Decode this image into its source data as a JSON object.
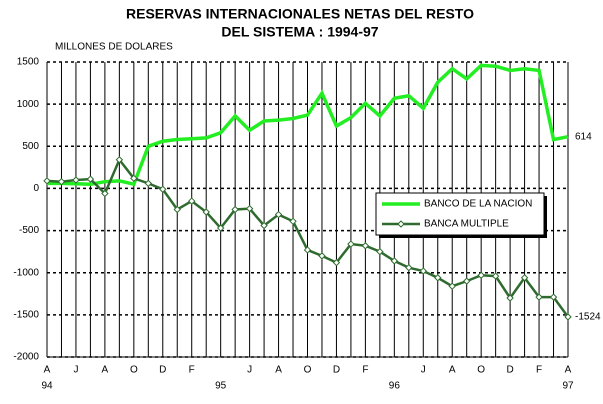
{
  "chart_data": {
    "type": "line",
    "title": "RESERVAS INTERNACIONALES NETAS DEL RESTO",
    "subtitle": "DEL SISTEMA : 1994-97",
    "y_label": "MILLONES DE DOLARES",
    "categories": [
      "A",
      null,
      "J",
      null,
      "A",
      null,
      "O",
      null,
      "D",
      null,
      "F",
      null,
      null,
      null,
      "J",
      null,
      "A",
      null,
      "O",
      null,
      "D",
      null,
      "F",
      null,
      null,
      null,
      "J",
      null,
      "A",
      null,
      "O",
      null,
      "D",
      null,
      "F",
      null,
      "A"
    ],
    "year_labels": [
      "94",
      null,
      null,
      null,
      null,
      null,
      null,
      null,
      null,
      null,
      null,
      null,
      "95",
      null,
      null,
      null,
      null,
      null,
      null,
      null,
      null,
      null,
      null,
      null,
      "96",
      null,
      null,
      null,
      null,
      null,
      null,
      null,
      null,
      null,
      null,
      null,
      "97"
    ],
    "series": [
      {
        "name": "BANCO DE LA NACION",
        "color": "#22ee22",
        "width": 3.5,
        "marker": "none",
        "values": [
          60,
          60,
          55,
          50,
          80,
          90,
          50,
          500,
          560,
          580,
          590,
          600,
          660,
          860,
          690,
          800,
          810,
          830,
          870,
          1130,
          740,
          840,
          1010,
          860,
          1070,
          1100,
          950,
          1260,
          1420,
          1300,
          1460,
          1450,
          1400,
          1420,
          1400,
          580,
          614
        ]
      },
      {
        "name": "BANCA MULTIPLE",
        "color": "#2f6b2f",
        "width": 2.5,
        "marker": "diamond",
        "values": [
          90,
          80,
          100,
          110,
          -60,
          340,
          120,
          60,
          -10,
          -250,
          -150,
          -280,
          -470,
          -250,
          -240,
          -440,
          -310,
          -390,
          -730,
          -800,
          -880,
          -660,
          -680,
          -750,
          -860,
          -940,
          -980,
          -1060,
          -1160,
          -1100,
          -1030,
          -1040,
          -1300,
          -1060,
          -1290,
          -1290,
          -1524
        ]
      }
    ],
    "ylim": [
      -2000,
      1500
    ],
    "yticks": [
      -2000,
      -1500,
      -1000,
      -500,
      0,
      500,
      1000,
      1500
    ],
    "grid": true,
    "legend": "center right",
    "end_labels": true
  }
}
